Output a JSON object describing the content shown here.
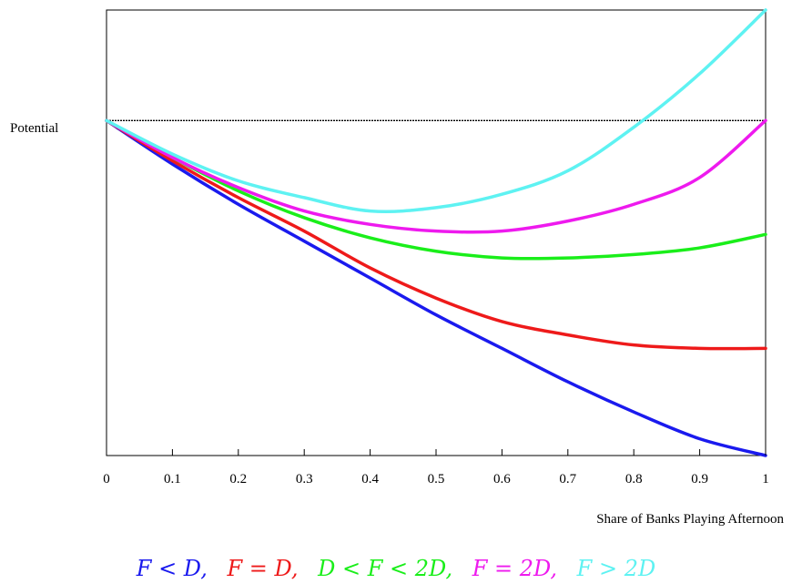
{
  "chart_data": {
    "type": "line",
    "title": "",
    "xlabel": "Share of Banks Playing Afternoon",
    "ylabel": "Potential",
    "xlim": [
      0,
      1
    ],
    "ylim": [
      -1.0,
      0.33
    ],
    "x_ticks": [
      "0",
      "0.1",
      "0.2",
      "0.3",
      "0.4",
      "0.5",
      "0.6",
      "0.7",
      "0.8",
      "0.9",
      "1"
    ],
    "grid": false,
    "legend_position": "bottom",
    "reference_line": {
      "y": 0,
      "style": "dashed",
      "color": "#000000"
    },
    "x": [
      0,
      0.1,
      0.2,
      0.3,
      0.4,
      0.5,
      0.6,
      0.7,
      0.8,
      0.9,
      1.0
    ],
    "series": [
      {
        "name": "F < D",
        "label": "F < D,",
        "color": "#1a1aee",
        "values": [
          0,
          -0.13,
          -0.25,
          -0.36,
          -0.47,
          -0.58,
          -0.68,
          -0.78,
          -0.87,
          -0.95,
          -1.0
        ]
      },
      {
        "name": "F = D",
        "label": "F = D,",
        "color": "#ee1a1a",
        "values": [
          0,
          -0.12,
          -0.23,
          -0.33,
          -0.44,
          -0.53,
          -0.6,
          -0.64,
          -0.67,
          -0.68,
          -0.68
        ]
      },
      {
        "name": "D < F < 2D",
        "label": "D < F < 2D,",
        "color": "#1aee1a",
        "values": [
          0,
          -0.11,
          -0.21,
          -0.29,
          -0.35,
          -0.39,
          -0.41,
          -0.41,
          -0.4,
          -0.38,
          -0.34
        ]
      },
      {
        "name": "F = 2D",
        "label": "F = 2D,",
        "color": "#ee1aee",
        "values": [
          0,
          -0.11,
          -0.2,
          -0.27,
          -0.31,
          -0.33,
          -0.33,
          -0.3,
          -0.25,
          -0.17,
          0
        ]
      },
      {
        "name": "F > 2D",
        "label": "F > 2D",
        "color": "#5ef2f2",
        "values": [
          0,
          -0.1,
          -0.18,
          -0.23,
          -0.27,
          -0.26,
          -0.22,
          -0.15,
          -0.02,
          0.14,
          0.33
        ]
      }
    ]
  }
}
